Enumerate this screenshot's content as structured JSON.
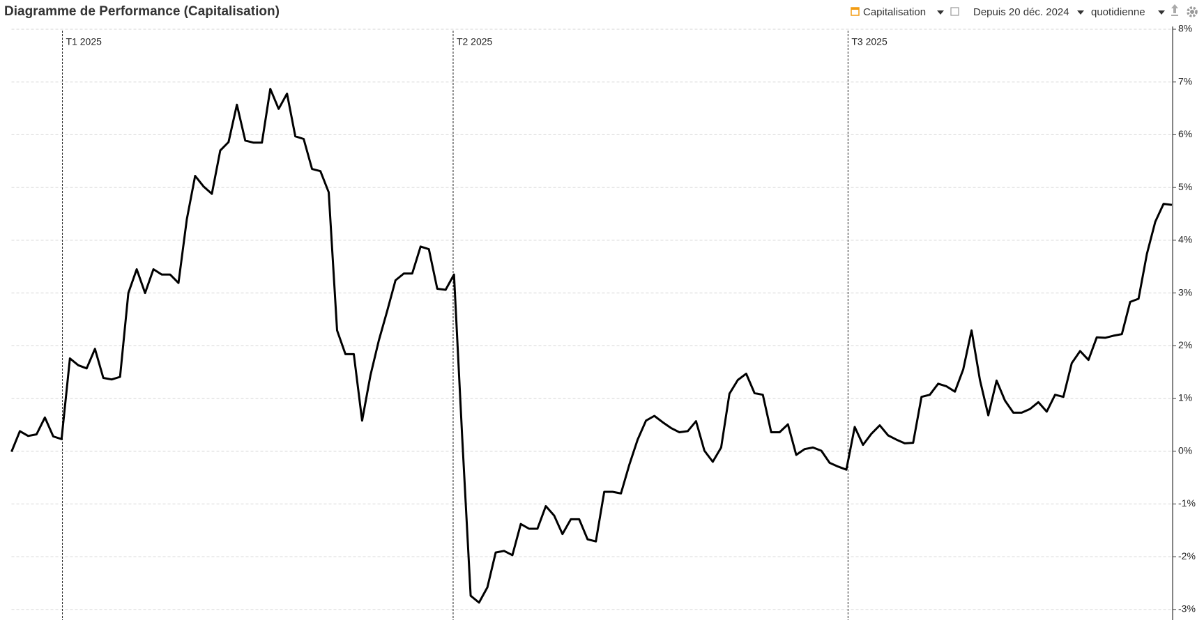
{
  "toolbar": {
    "series_selector": "Capitalisation",
    "period_selector": "Depuis 20 déc. 2024",
    "frequency_selector": "quotidienne"
  },
  "chart_data": {
    "type": "line",
    "title": "Diagramme de Performance (Capitalisation)",
    "color": "#000000",
    "grid": true,
    "y_axis_side": "right",
    "xlim": [
      0,
      139
    ],
    "xticks": [
      {
        "value": 6.1,
        "label": "T1 2025"
      },
      {
        "value": 52.9,
        "label": "T2 2025"
      },
      {
        "value": 100.2,
        "label": "T3 2025"
      }
    ],
    "ylim": [
      -3.2,
      8
    ],
    "yticks": [
      {
        "value": -3,
        "label": "-3%"
      },
      {
        "value": -2,
        "label": "-2%"
      },
      {
        "value": -1,
        "label": "-1%"
      },
      {
        "value": 0,
        "label": "0%"
      },
      {
        "value": 1,
        "label": "1%"
      },
      {
        "value": 2,
        "label": "2%"
      },
      {
        "value": 3,
        "label": "3%"
      },
      {
        "value": 4,
        "label": "4%"
      },
      {
        "value": 5,
        "label": "5%"
      },
      {
        "value": 6,
        "label": "6%"
      },
      {
        "value": 7,
        "label": "7%"
      },
      {
        "value": 8,
        "label": "8%"
      }
    ],
    "values": [
      -0.01,
      0.38,
      0.29,
      0.32,
      0.64,
      0.28,
      0.23,
      1.76,
      1.63,
      1.57,
      1.94,
      1.39,
      1.36,
      1.41,
      3.0,
      3.45,
      3.0,
      3.45,
      3.35,
      3.35,
      3.19,
      4.4,
      5.22,
      5.02,
      4.88,
      5.7,
      5.86,
      6.57,
      5.89,
      5.85,
      5.85,
      6.87,
      6.49,
      6.78,
      5.97,
      5.92,
      5.35,
      5.31,
      4.91,
      2.29,
      1.84,
      1.84,
      0.58,
      1.44,
      2.1,
      2.66,
      3.24,
      3.37,
      3.37,
      3.88,
      3.83,
      3.08,
      3.06,
      3.35,
      0.23,
      -2.74,
      -2.87,
      -2.58,
      -1.92,
      -1.89,
      -1.97,
      -1.38,
      -1.47,
      -1.47,
      -1.04,
      -1.22,
      -1.57,
      -1.29,
      -1.29,
      -1.67,
      -1.71,
      -0.77,
      -0.77,
      -0.8,
      -0.26,
      0.22,
      0.58,
      0.67,
      0.55,
      0.44,
      0.36,
      0.38,
      0.57,
      0.01,
      -0.2,
      0.07,
      1.09,
      1.35,
      1.47,
      1.1,
      1.07,
      0.36,
      0.36,
      0.51,
      -0.07,
      0.04,
      0.07,
      0.01,
      -0.22,
      -0.29,
      -0.35,
      0.46,
      0.12,
      0.33,
      0.49,
      0.3,
      0.22,
      0.15,
      0.16,
      1.03,
      1.07,
      1.28,
      1.23,
      1.13,
      1.55,
      2.29,
      1.35,
      0.68,
      1.34,
      0.96,
      0.73,
      0.73,
      0.8,
      0.93,
      0.75,
      1.07,
      1.03,
      1.67,
      1.9,
      1.73,
      2.16,
      2.15,
      2.19,
      2.22,
      2.83,
      2.89,
      3.74,
      4.35,
      4.69,
      4.67
    ]
  }
}
